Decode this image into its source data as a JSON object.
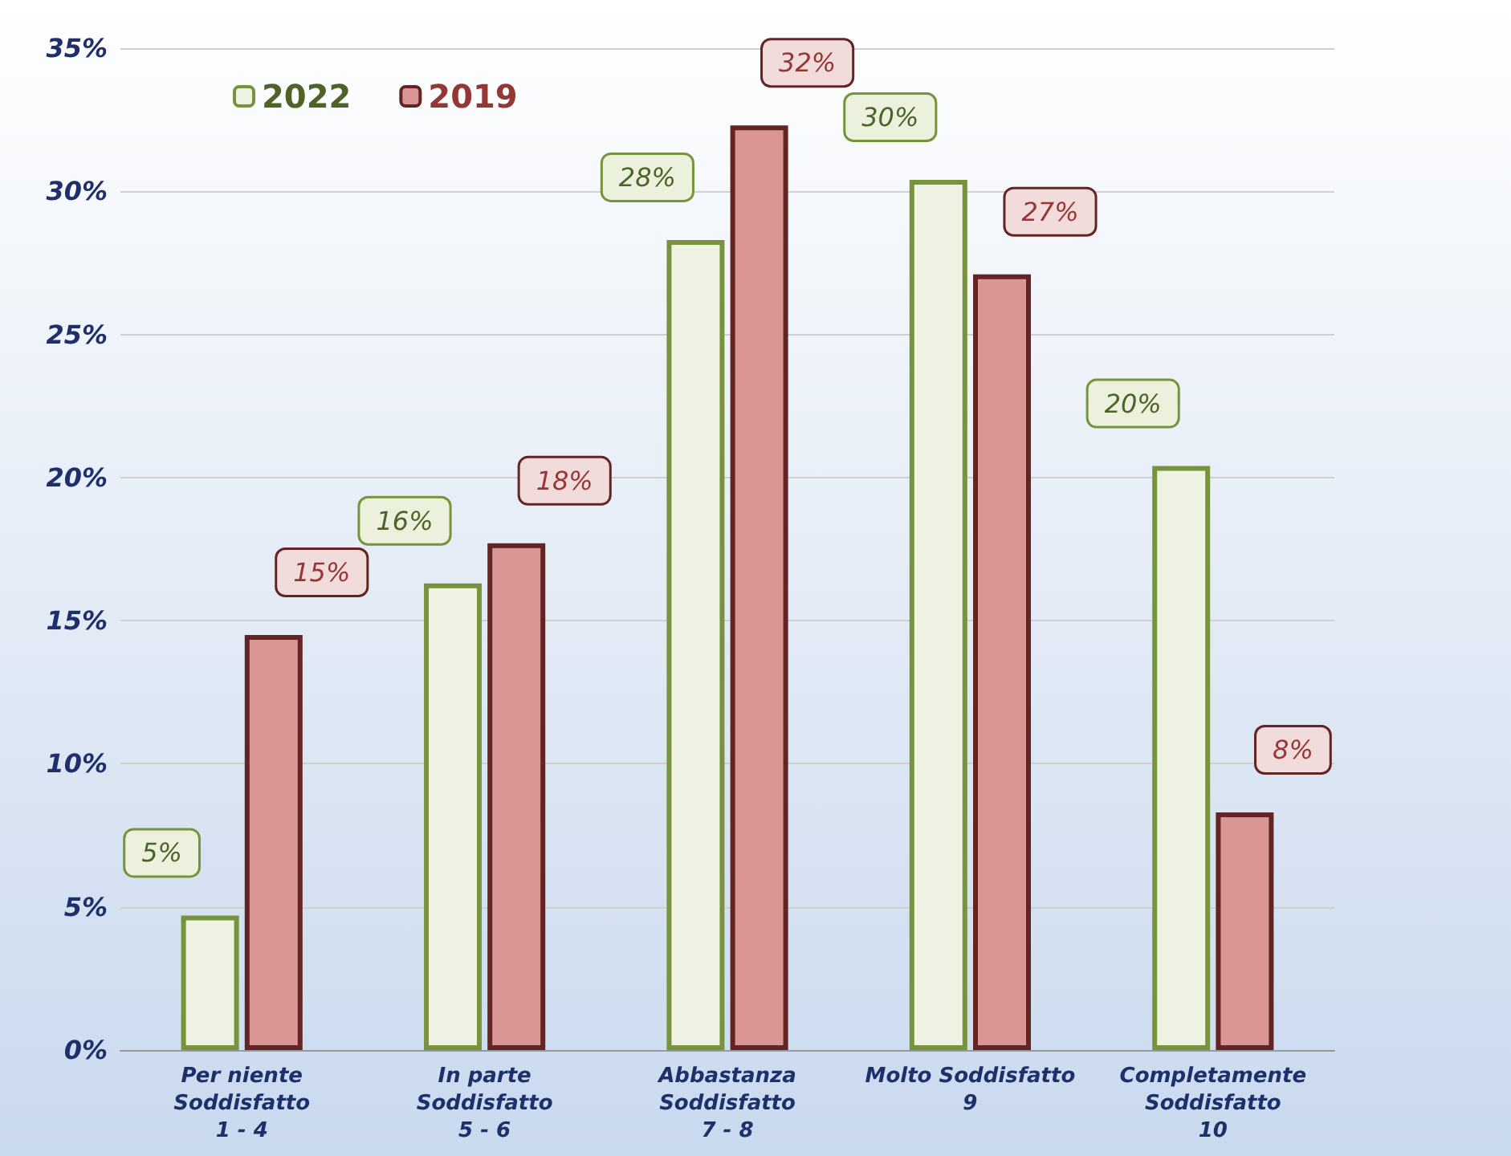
{
  "chart_data": {
    "type": "bar",
    "categories": [
      "Per niente\nSoddisfatto\n1 - 4",
      "In parte\nSoddisfatto\n5 - 6",
      "Abbastanza\nSoddisfatto\n7 - 8",
      "Molto Soddisfatto\n9",
      "Completamente\nSoddisfatto\n10"
    ],
    "series": [
      {
        "name": "2022",
        "color": "#eef2e2",
        "values": [
          4.7,
          16.3,
          28.3,
          30.4,
          20.4
        ],
        "value_labels": [
          "5%",
          "16%",
          "28%",
          "30%",
          "20%"
        ]
      },
      {
        "name": "2019",
        "color": "#d99694",
        "values": [
          14.5,
          17.7,
          32.3,
          27.1,
          8.3
        ],
        "value_labels": [
          "15%",
          "18%",
          "32%",
          "27%",
          "8%"
        ]
      }
    ],
    "ylim": [
      0,
      35
    ],
    "yticks": [
      {
        "value": 0,
        "label": "0%"
      },
      {
        "value": 5,
        "label": "5%"
      },
      {
        "value": 10,
        "label": "10%"
      },
      {
        "value": 15,
        "label": "15%"
      },
      {
        "value": 20,
        "label": "20%"
      },
      {
        "value": 25,
        "label": "25%"
      },
      {
        "value": 30,
        "label": "30%"
      },
      {
        "value": 35,
        "label": "35%"
      }
    ],
    "grid": "y",
    "legend": "top left"
  }
}
